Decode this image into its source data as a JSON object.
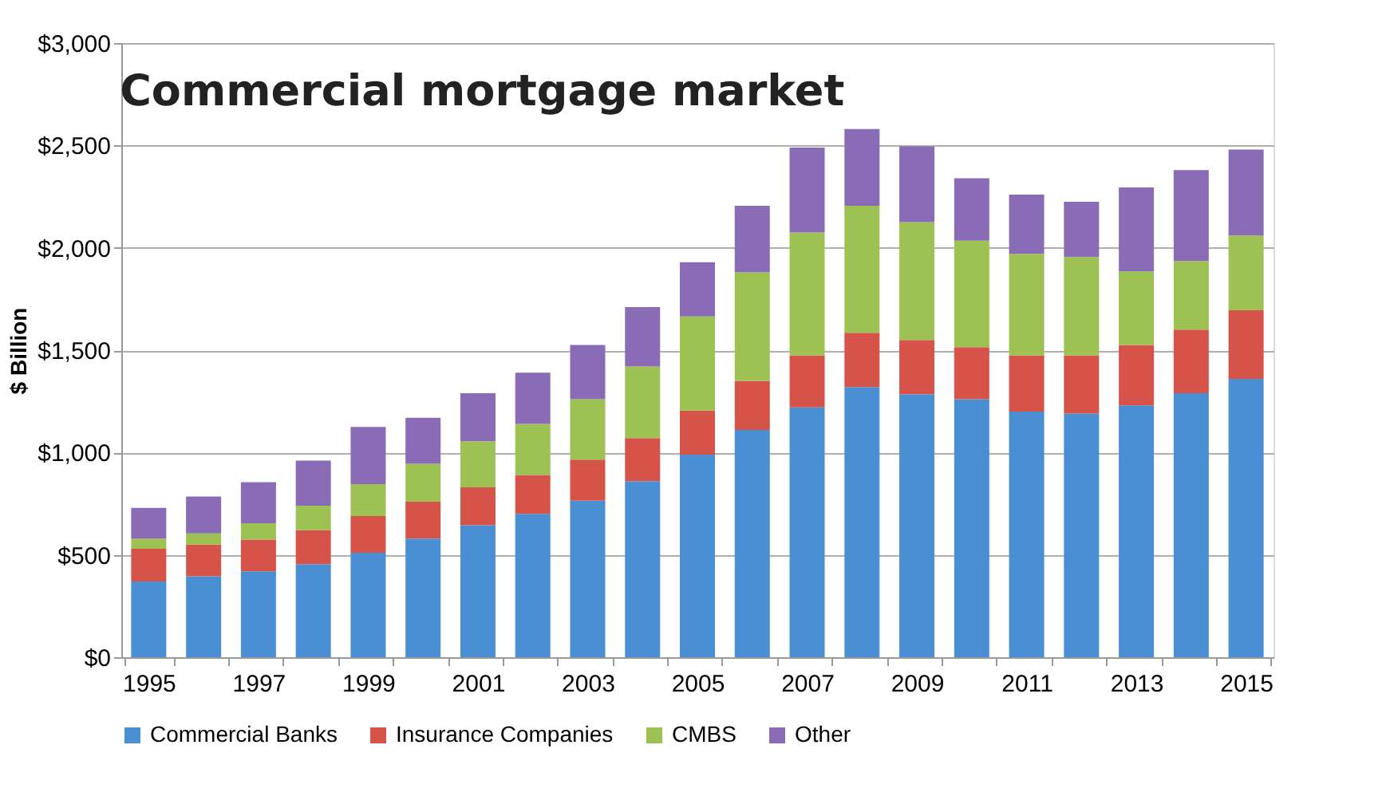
{
  "chart_data": {
    "type": "bar",
    "stacked": true,
    "title": "Commercial mortgage market",
    "ylabel": "$ Billion",
    "categories": [
      "1995",
      null,
      "1997",
      null,
      "1999",
      null,
      "2001",
      null,
      "2003",
      null,
      "2005",
      null,
      "2007",
      null,
      "2009",
      null,
      "2011",
      null,
      "2013",
      null,
      "2015"
    ],
    "series": [
      {
        "name": "Commercial Banks",
        "color": "#4a8fd4",
        "values": [
          370,
          395,
          420,
          455,
          510,
          580,
          645,
          700,
          765,
          860,
          990,
          1110,
          1220,
          1320,
          1285,
          1260,
          1200,
          1190,
          1230,
          1290,
          1360
        ]
      },
      {
        "name": "Insurance Companies",
        "color": "#d6534a",
        "values": [
          160,
          155,
          155,
          165,
          180,
          180,
          185,
          190,
          200,
          210,
          215,
          240,
          255,
          265,
          265,
          255,
          275,
          285,
          295,
          310,
          335
        ]
      },
      {
        "name": "CMBS",
        "color": "#9dc153",
        "values": [
          50,
          55,
          80,
          120,
          155,
          185,
          225,
          250,
          295,
          350,
          460,
          530,
          600,
          620,
          575,
          520,
          495,
          480,
          360,
          335,
          365
        ]
      },
      {
        "name": "Other",
        "color": "#8a6bb5",
        "values": [
          150,
          180,
          200,
          220,
          280,
          225,
          235,
          250,
          265,
          290,
          265,
          325,
          415,
          375,
          370,
          305,
          290,
          270,
          410,
          445,
          420
        ]
      }
    ],
    "ylim": [
      0,
      3000
    ],
    "yticks": [
      {
        "value": 0,
        "label": "$0"
      },
      {
        "value": 500,
        "label": "$500"
      },
      {
        "value": 1000,
        "label": "$1,000"
      },
      {
        "value": 1500,
        "label": "$1,500"
      },
      {
        "value": 2000,
        "label": "$2,000"
      },
      {
        "value": 2500,
        "label": "$2,500"
      },
      {
        "value": 3000,
        "label": "$3,000"
      }
    ],
    "grid": "y",
    "legend": "bottom"
  }
}
